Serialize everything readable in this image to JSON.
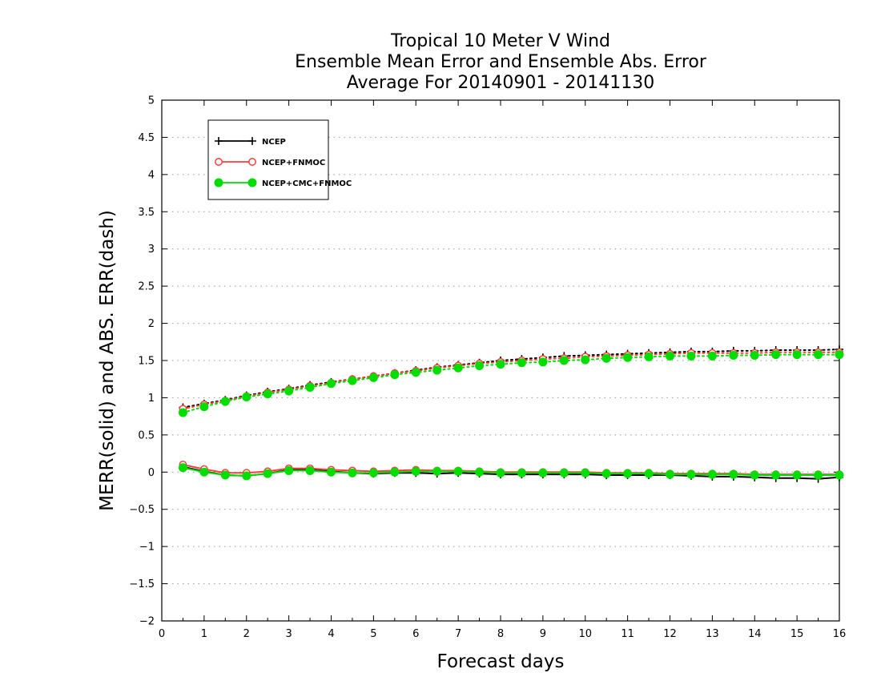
{
  "chart_data": {
    "type": "line",
    "title": [
      "Tropical 10 Meter V Wind",
      "Ensemble Mean Error and Ensemble Abs. Error",
      "Average For 20140901 - 20141130"
    ],
    "xlabel": "Forecast days",
    "ylabel": "MERR(solid) and ABS. ERR(dash)",
    "xlim": [
      0,
      16
    ],
    "ylim": [
      -2,
      5
    ],
    "x_ticks": [
      "0",
      "1",
      "2",
      "3",
      "4",
      "5",
      "6",
      "7",
      "8",
      "9",
      "10",
      "11",
      "12",
      "13",
      "14",
      "15",
      "16"
    ],
    "y_ticks": [
      "5",
      "4.5",
      "4",
      "3.5",
      "3",
      "2.5",
      "2",
      "1.5",
      "1",
      "0.5",
      "0",
      "-0.5",
      "-1",
      "-1.5",
      "-2"
    ],
    "grid": "horizontal-dotted",
    "legend_position": "top-left",
    "x": [
      0.5,
      1,
      1.5,
      2,
      2.5,
      3,
      3.5,
      4,
      4.5,
      5,
      5.5,
      6,
      6.5,
      7,
      7.5,
      8,
      8.5,
      9,
      9.5,
      10,
      10.5,
      11,
      11.5,
      12,
      12.5,
      13,
      13.5,
      14,
      14.5,
      15,
      15.5,
      16
    ],
    "series": [
      {
        "name": "NCEP",
        "color": "#000000",
        "marker": "plus",
        "merr": [
          0.07,
          0.01,
          -0.04,
          -0.05,
          -0.02,
          0.03,
          0.03,
          0.01,
          -0.01,
          -0.02,
          -0.01,
          -0.01,
          -0.02,
          -0.01,
          -0.02,
          -0.03,
          -0.03,
          -0.03,
          -0.03,
          -0.03,
          -0.04,
          -0.04,
          -0.04,
          -0.04,
          -0.05,
          -0.06,
          -0.06,
          -0.07,
          -0.08,
          -0.08,
          -0.09,
          -0.07
        ],
        "abs_err": [
          0.87,
          0.92,
          0.97,
          1.03,
          1.08,
          1.12,
          1.17,
          1.21,
          1.25,
          1.29,
          1.33,
          1.37,
          1.41,
          1.44,
          1.47,
          1.5,
          1.52,
          1.54,
          1.56,
          1.57,
          1.58,
          1.59,
          1.6,
          1.61,
          1.62,
          1.62,
          1.63,
          1.63,
          1.64,
          1.64,
          1.64,
          1.65
        ]
      },
      {
        "name": "NCEP+FNMOC",
        "color": "#ff3c3c",
        "marker": "open-circle",
        "merr": [
          0.1,
          0.04,
          -0.01,
          -0.01,
          0.01,
          0.05,
          0.05,
          0.03,
          0.02,
          0.01,
          0.02,
          0.03,
          0.02,
          0.02,
          0.01,
          0.0,
          0.0,
          0.0,
          0.0,
          0.0,
          -0.01,
          -0.01,
          -0.01,
          -0.02,
          -0.02,
          -0.02,
          -0.02,
          -0.03,
          -0.03,
          -0.03,
          -0.03,
          -0.03
        ],
        "abs_err": [
          0.85,
          0.91,
          0.96,
          1.02,
          1.07,
          1.11,
          1.16,
          1.2,
          1.25,
          1.29,
          1.33,
          1.36,
          1.4,
          1.43,
          1.46,
          1.48,
          1.5,
          1.52,
          1.53,
          1.55,
          1.56,
          1.57,
          1.58,
          1.59,
          1.6,
          1.6,
          1.6,
          1.6,
          1.61,
          1.61,
          1.61,
          1.61
        ]
      },
      {
        "name": "NCEP+CMC+FNMOC",
        "color": "#00dd00",
        "marker": "filled-circle",
        "merr": [
          0.06,
          0.0,
          -0.04,
          -0.05,
          -0.02,
          0.02,
          0.02,
          0.0,
          -0.01,
          -0.01,
          0.0,
          0.01,
          0.01,
          0.01,
          0.0,
          -0.01,
          -0.01,
          -0.01,
          -0.01,
          -0.01,
          -0.02,
          -0.02,
          -0.02,
          -0.03,
          -0.03,
          -0.03,
          -0.03,
          -0.04,
          -0.04,
          -0.04,
          -0.04,
          -0.04
        ],
        "abs_err": [
          0.8,
          0.88,
          0.95,
          1.01,
          1.05,
          1.09,
          1.14,
          1.19,
          1.23,
          1.27,
          1.31,
          1.34,
          1.37,
          1.4,
          1.43,
          1.45,
          1.47,
          1.48,
          1.5,
          1.51,
          1.53,
          1.54,
          1.55,
          1.56,
          1.56,
          1.56,
          1.57,
          1.57,
          1.58,
          1.58,
          1.58,
          1.58
        ]
      }
    ]
  }
}
